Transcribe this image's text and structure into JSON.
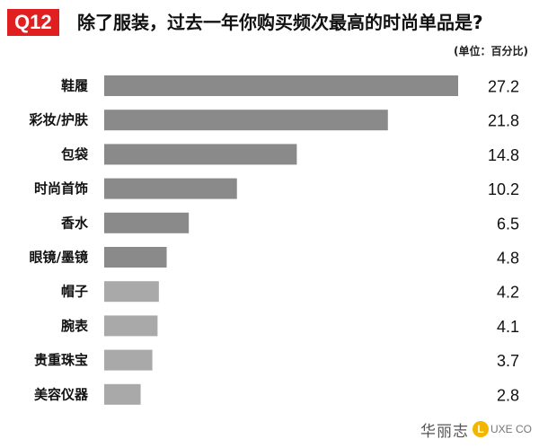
{
  "header": {
    "badge": "Q12",
    "title": "除了服装，过去一年你购买频次最高的时尚单品是?"
  },
  "unit_note": "(单位：百分比)",
  "logo": {
    "cn": "华丽志",
    "circle_letter": "L",
    "en": "UXE CO"
  },
  "colors": {
    "badge": "#e02020",
    "bar_dark": "#8a8a8a",
    "bar_light": "#a9a9a9"
  },
  "chart_data": {
    "type": "bar",
    "orientation": "horizontal",
    "title": "除了服装，过去一年你购买频次最高的时尚单品是?",
    "unit": "(单位：百分比)",
    "categories": [
      "鞋履",
      "彩妆/护肤",
      "包袋",
      "时尚首饰",
      "香水",
      "眼镜/墨镜",
      "帽子",
      "腕表",
      "贵重珠宝",
      "美容仪器"
    ],
    "values": [
      27.2,
      21.8,
      14.8,
      10.2,
      6.5,
      4.8,
      4.2,
      4.1,
      3.7,
      2.8
    ],
    "value_labels": [
      "27.2",
      "21.8",
      "14.8",
      "10.2",
      "6.5",
      "4.8",
      "4.2",
      "4.1",
      "3.7",
      "2.8"
    ],
    "xlim": [
      0,
      27.2
    ],
    "grid": false,
    "legend": "none"
  }
}
